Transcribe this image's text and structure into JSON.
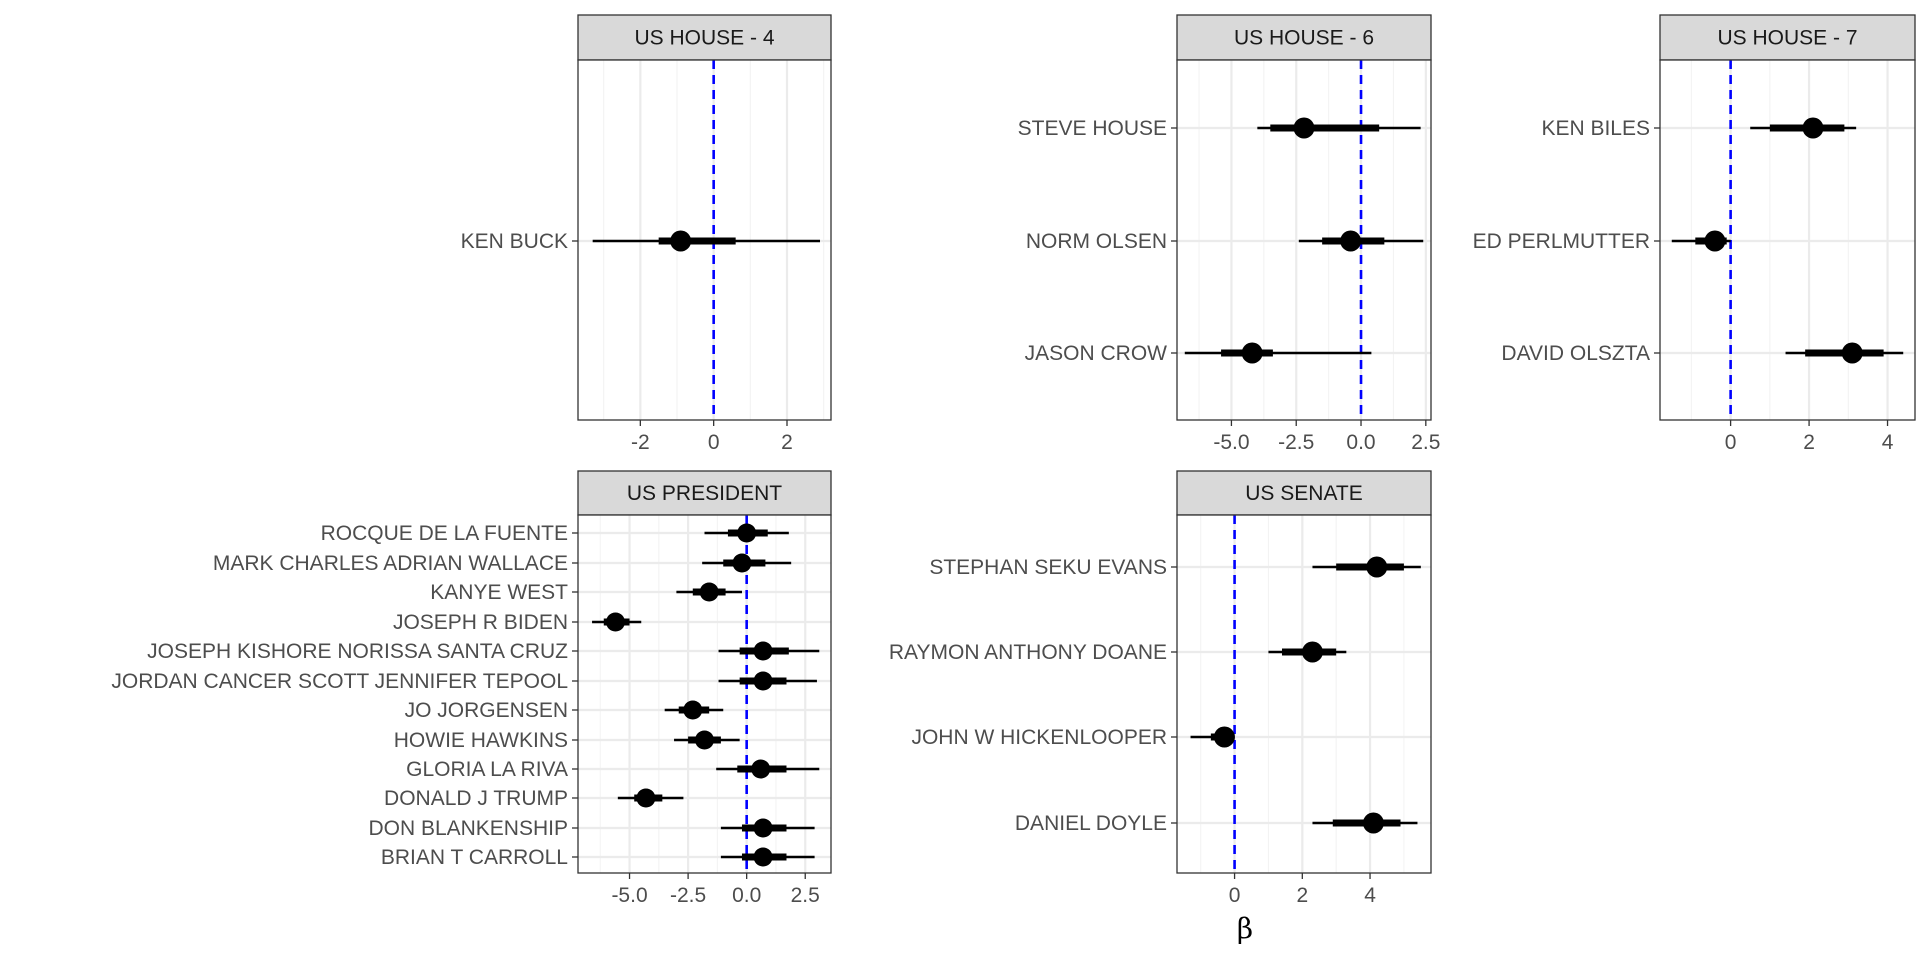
{
  "chart_data": {
    "type": "interval",
    "xlabel": "β",
    "zero_line_color": "#0000ff",
    "point_color": "#000000",
    "panels": [
      {
        "title": "US HOUSE - 4",
        "xlim": [
          -3.7,
          3.2
        ],
        "xticks": [
          -2,
          0,
          2
        ],
        "xtick_labels": [
          "-2",
          "0",
          "2"
        ],
        "rows": [
          {
            "label": "KEN BUCK",
            "estimate": -0.9,
            "inner": [
              -1.5,
              0.6
            ],
            "outer": [
              -3.3,
              2.9
            ]
          }
        ]
      },
      {
        "title": "US HOUSE - 6",
        "xlim": [
          -7.1,
          2.7
        ],
        "xticks": [
          -5,
          -2.5,
          0,
          2.5
        ],
        "xtick_labels": [
          "-5.0",
          "-2.5",
          "0.0",
          "2.5"
        ],
        "rows": [
          {
            "label": "STEVE HOUSE",
            "estimate": -2.2,
            "inner": [
              -3.5,
              0.7
            ],
            "outer": [
              -4.0,
              2.3
            ]
          },
          {
            "label": "NORM OLSEN",
            "estimate": -0.4,
            "inner": [
              -1.5,
              0.9
            ],
            "outer": [
              -2.4,
              2.4
            ]
          },
          {
            "label": "JASON CROW",
            "estimate": -4.2,
            "inner": [
              -5.4,
              -3.4
            ],
            "outer": [
              -6.8,
              0.4
            ]
          }
        ]
      },
      {
        "title": "US HOUSE - 7",
        "xlim": [
          -1.8,
          4.7
        ],
        "xticks": [
          0,
          2,
          4
        ],
        "xtick_labels": [
          "0",
          "2",
          "4"
        ],
        "rows": [
          {
            "label": "KEN BILES",
            "estimate": 2.1,
            "inner": [
              1.0,
              2.9
            ],
            "outer": [
              0.5,
              3.2
            ]
          },
          {
            "label": "ED PERLMUTTER",
            "estimate": -0.4,
            "inner": [
              -0.9,
              -0.1
            ],
            "outer": [
              -1.5,
              0.0
            ]
          },
          {
            "label": "DAVID OLSZTA",
            "estimate": 3.1,
            "inner": [
              1.9,
              3.9
            ],
            "outer": [
              1.4,
              4.4
            ]
          }
        ]
      },
      {
        "title": "US PRESIDENT",
        "xlim": [
          -7.2,
          3.6
        ],
        "xticks": [
          -5,
          -2.5,
          0,
          2.5
        ],
        "xtick_labels": [
          "-5.0",
          "-2.5",
          "0.0",
          "2.5"
        ],
        "rows": [
          {
            "label": "ROCQUE DE LA FUENTE",
            "estimate": 0.0,
            "inner": [
              -0.8,
              0.9
            ],
            "outer": [
              -1.8,
              1.8
            ]
          },
          {
            "label": "MARK CHARLES ADRIAN WALLACE",
            "estimate": -0.2,
            "inner": [
              -1.0,
              0.8
            ],
            "outer": [
              -1.9,
              1.9
            ]
          },
          {
            "label": "KANYE WEST",
            "estimate": -1.6,
            "inner": [
              -2.3,
              -0.9
            ],
            "outer": [
              -3.0,
              -0.2
            ]
          },
          {
            "label": "JOSEPH R BIDEN",
            "estimate": -5.6,
            "inner": [
              -6.1,
              -5.0
            ],
            "outer": [
              -6.6,
              -4.5
            ]
          },
          {
            "label": "JOSEPH KISHORE NORISSA SANTA CRUZ",
            "estimate": 0.7,
            "inner": [
              -0.3,
              1.8
            ],
            "outer": [
              -1.2,
              3.1
            ]
          },
          {
            "label": "JORDAN CANCER SCOTT JENNIFER TEPOOL",
            "estimate": 0.7,
            "inner": [
              -0.3,
              1.7
            ],
            "outer": [
              -1.2,
              3.0
            ]
          },
          {
            "label": "JO JORGENSEN",
            "estimate": -2.3,
            "inner": [
              -2.9,
              -1.6
            ],
            "outer": [
              -3.5,
              -1.0
            ]
          },
          {
            "label": "HOWIE HAWKINS",
            "estimate": -1.8,
            "inner": [
              -2.5,
              -1.1
            ],
            "outer": [
              -3.1,
              -0.3
            ]
          },
          {
            "label": "GLORIA LA RIVA",
            "estimate": 0.6,
            "inner": [
              -0.4,
              1.7
            ],
            "outer": [
              -1.3,
              3.1
            ]
          },
          {
            "label": "DONALD J TRUMP",
            "estimate": -4.3,
            "inner": [
              -4.8,
              -3.6
            ],
            "outer": [
              -5.5,
              -2.7
            ]
          },
          {
            "label": "DON BLANKENSHIP",
            "estimate": 0.7,
            "inner": [
              -0.2,
              1.7
            ],
            "outer": [
              -1.1,
              2.9
            ]
          },
          {
            "label": "BRIAN T CARROLL",
            "estimate": 0.7,
            "inner": [
              -0.2,
              1.7
            ],
            "outer": [
              -1.1,
              2.9
            ]
          }
        ]
      },
      {
        "title": "US SENATE",
        "xlim": [
          -1.7,
          5.8
        ],
        "xticks": [
          0,
          2,
          4
        ],
        "xtick_labels": [
          "0",
          "2",
          "4"
        ],
        "rows": [
          {
            "label": "STEPHAN SEKU EVANS",
            "estimate": 4.2,
            "inner": [
              3.0,
              5.0
            ],
            "outer": [
              2.3,
              5.5
            ]
          },
          {
            "label": "RAYMON ANTHONY DOANE",
            "estimate": 2.3,
            "inner": [
              1.4,
              3.0
            ],
            "outer": [
              1.0,
              3.3
            ]
          },
          {
            "label": "JOHN W HICKENLOOPER",
            "estimate": -0.3,
            "inner": [
              -0.7,
              0.0
            ],
            "outer": [
              -1.3,
              0.0
            ]
          },
          {
            "label": "DANIEL DOYLE",
            "estimate": 4.1,
            "inner": [
              2.9,
              4.9
            ],
            "outer": [
              2.3,
              5.4
            ]
          }
        ]
      }
    ]
  }
}
